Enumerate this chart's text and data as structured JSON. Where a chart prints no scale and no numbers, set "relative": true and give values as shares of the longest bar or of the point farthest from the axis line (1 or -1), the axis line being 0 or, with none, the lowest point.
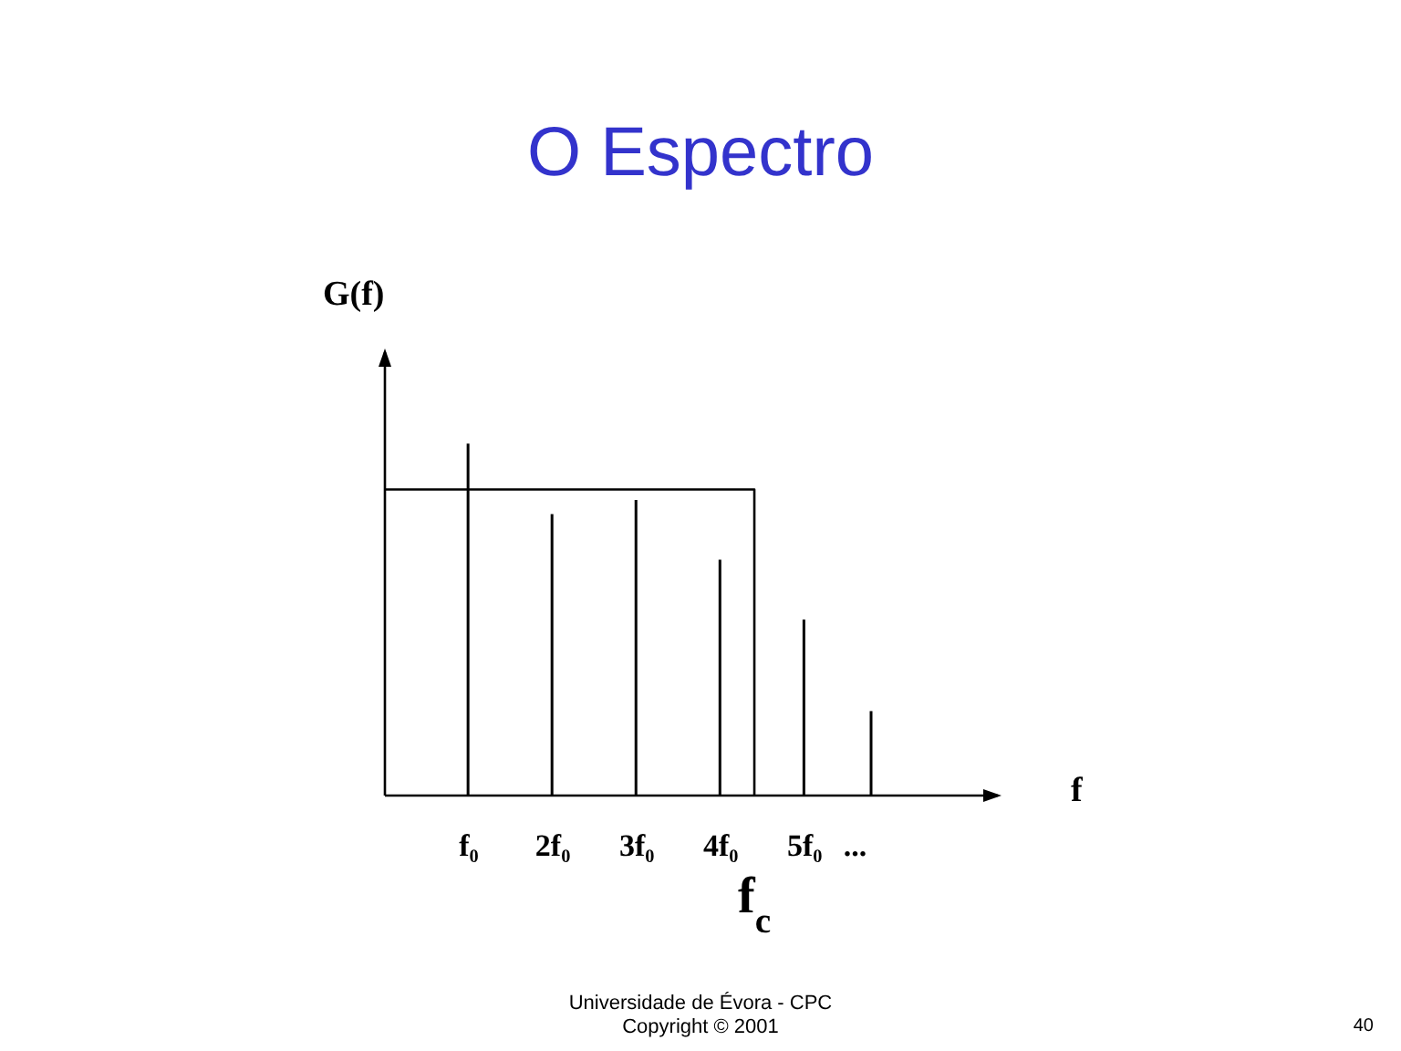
{
  "chart_data": {
    "type": "bar",
    "title": "O Espectro",
    "xlabel": "f",
    "ylabel": "G(f)",
    "relative": true,
    "xlim": [
      0,
      7.3
    ],
    "xticks": [
      {
        "value": 1,
        "label": "f₀"
      },
      {
        "value": 2,
        "label": "2f₀"
      },
      {
        "value": 3,
        "label": "3f₀"
      },
      {
        "value": 4,
        "label": "4f₀"
      },
      {
        "value": 5,
        "label": "5f₀"
      },
      {
        "value": 5.6,
        "label": "..."
      }
    ],
    "series": [
      {
        "color": "#000000",
        "x": [
          1,
          2,
          3,
          4,
          5,
          5.8
        ],
        "values": [
          1,
          0.8,
          0.84,
          0.67,
          0.5,
          0.24
        ]
      },
      {
        "type": "line",
        "color": "#000000",
        "x": [
          0,
          4.4,
          4.4
        ],
        "values": [
          0.87,
          0.87,
          0
        ]
      }
    ],
    "annotations": [
      {
        "text": "f$_{c}$",
        "x": 4.4,
        "y": 0
      },
      "Universidade de Évora - CPC",
      "Copyright © 2001",
      "40"
    ]
  }
}
